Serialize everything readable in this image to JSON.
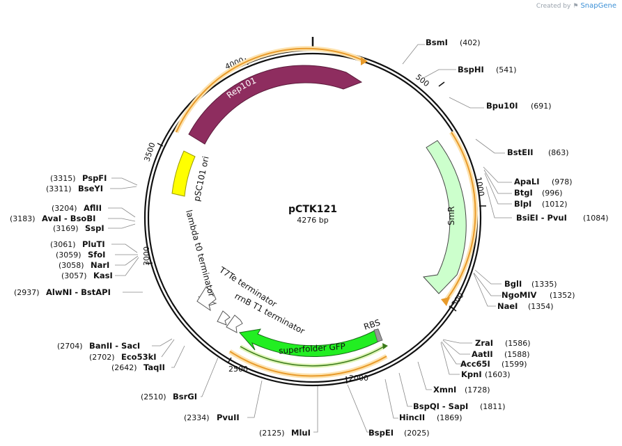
{
  "credit": {
    "prefix": "Created by",
    "brand": "SnapGene"
  },
  "plasmid": {
    "name": "pCTK121",
    "length_label": "4276 bp",
    "length": 4276
  },
  "ticks": [
    "500",
    "1000",
    "1500",
    "2000",
    "2500",
    "3000",
    "3500",
    "4000"
  ],
  "features": {
    "rep101": "Rep101",
    "ori": "pSC101 ori",
    "smr": "SmR",
    "rbs": "RBS",
    "gfp": "superfolder GFP",
    "rrnb": "rrnB T1 terminator",
    "t7te": "T7Te terminator",
    "lambda": "lambda t0 terminator"
  },
  "sites": [
    {
      "id": "bsmi",
      "text": "BsmI",
      "pos": "(402)"
    },
    {
      "id": "bsphi",
      "text": "BspHI",
      "pos": "(541)"
    },
    {
      "id": "bpu10i",
      "text": "Bpu10I",
      "pos": "(691)"
    },
    {
      "id": "bsteii",
      "text": "BstEII",
      "pos": "(863)"
    },
    {
      "id": "apali",
      "text": "ApaLI",
      "pos": "(978)"
    },
    {
      "id": "btgi",
      "text": "BtgI",
      "pos": "(996)"
    },
    {
      "id": "blpi",
      "text": "BlpI",
      "pos": "(1012)"
    },
    {
      "id": "bsiei",
      "text": "BsiEI - PvuI",
      "pos": "(1084)"
    },
    {
      "id": "bgli",
      "text": "BglI",
      "pos": "(1335)"
    },
    {
      "id": "ngomiv",
      "text": "NgoMIV",
      "pos": "(1352)"
    },
    {
      "id": "naei",
      "text": "NaeI",
      "pos": "(1354)"
    },
    {
      "id": "zrai",
      "text": "ZraI",
      "pos": "(1586)"
    },
    {
      "id": "aatii",
      "text": "AatII",
      "pos": "(1588)"
    },
    {
      "id": "acc65i",
      "text": "Acc65I",
      "pos": "(1599)"
    },
    {
      "id": "kpni",
      "text": "KpnI",
      "pos": "(1603)"
    },
    {
      "id": "xmni",
      "text": "XmnI",
      "pos": "(1728)"
    },
    {
      "id": "bspqi",
      "text": "BspQI - SapI",
      "pos": "(1811)"
    },
    {
      "id": "hincii",
      "text": "HincII",
      "pos": "(1869)"
    },
    {
      "id": "bspei",
      "text": "BspEI",
      "pos": "(2025)"
    },
    {
      "id": "mlui",
      "text": "MluI",
      "pos": "(2125)"
    },
    {
      "id": "pvuii",
      "text": "PvuII",
      "pos": "(2334)"
    },
    {
      "id": "bsrgi",
      "text": "BsrGI",
      "pos": "(2510)"
    },
    {
      "id": "taqii",
      "text": "TaqII",
      "pos": "(2642)"
    },
    {
      "id": "eco53ki",
      "text": "Eco53kI",
      "pos": "(2702)"
    },
    {
      "id": "banii",
      "text": "BanII - SacI",
      "pos": "(2704)"
    },
    {
      "id": "alwni",
      "text": "AlwNI - BstAPI",
      "pos": "(2937)"
    },
    {
      "id": "kasi",
      "text": "KasI",
      "pos": "(3057)"
    },
    {
      "id": "nari",
      "text": "NarI",
      "pos": "(3058)"
    },
    {
      "id": "sfoi",
      "text": "SfoI",
      "pos": "(3059)"
    },
    {
      "id": "pluti",
      "text": "PluTI",
      "pos": "(3061)"
    },
    {
      "id": "sspi",
      "text": "SspI",
      "pos": "(3169)"
    },
    {
      "id": "avai",
      "text": "AvaI - BsoBI",
      "pos": "(3183)"
    },
    {
      "id": "aflii",
      "text": "AflII",
      "pos": "(3204)"
    },
    {
      "id": "bseyi",
      "text": "BseYI",
      "pos": "(3311)"
    },
    {
      "id": "pspfi",
      "text": "PspFI",
      "pos": "(3315)"
    }
  ],
  "colors": {
    "rep101": "#8e2d5f",
    "ori": "#ffff00",
    "smr": "#ccffcc",
    "gfp": "#22ee22",
    "orf": "#e89a2a",
    "orf_halo": "#fde3b0",
    "terminator": "#ffffff"
  }
}
